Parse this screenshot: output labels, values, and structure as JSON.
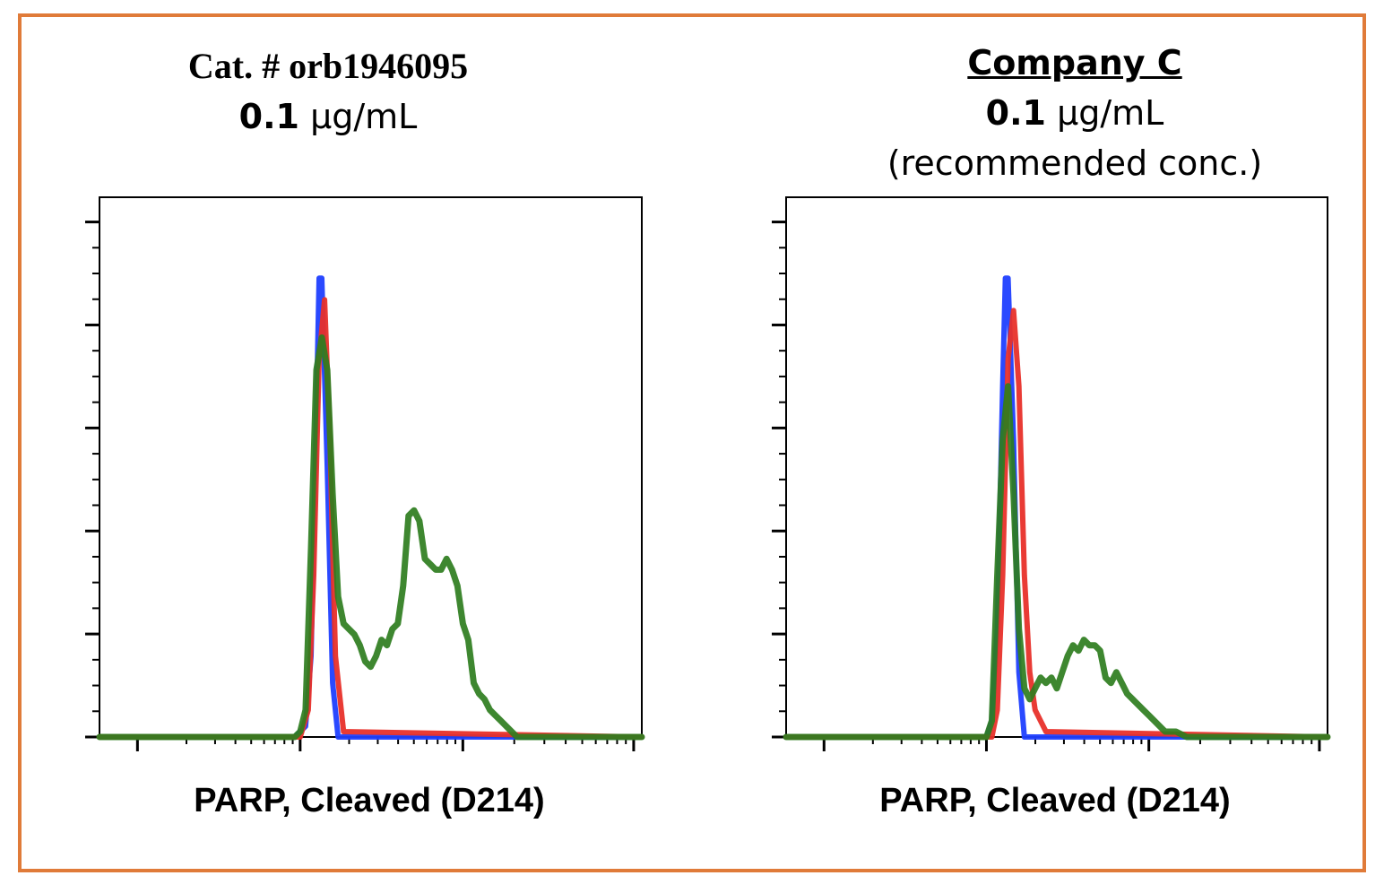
{
  "frame_color": "#e07b39",
  "panels": [
    {
      "title_line1": "Cat. # orb1946095",
      "conc_value": "0.1",
      "conc_unit": "µg/mL",
      "note": ""
    },
    {
      "title_line1": "Company C",
      "conc_value": "0.1",
      "conc_unit": "µg/mL",
      "note": "(recommended conc.)"
    }
  ],
  "chart_data": [
    {
      "type": "line",
      "xlabel": "PARP, Cleaved (D214)",
      "ylabel": "",
      "xlim": [
        0,
        100
      ],
      "ylim": [
        0,
        100
      ],
      "grid": false,
      "series": [
        {
          "color": "#1f3fff",
          "x": [
            0,
            36,
            38,
            39,
            40,
            40.5,
            41,
            42,
            43,
            44,
            100
          ],
          "y": [
            0,
            0,
            2,
            15,
            60,
            85,
            85,
            50,
            10,
            0,
            0
          ]
        },
        {
          "color": "#e8302a",
          "x": [
            0,
            37,
            38.5,
            39.5,
            40.5,
            41.5,
            42.5,
            43.5,
            45,
            100
          ],
          "y": [
            0,
            0,
            5,
            30,
            70,
            81,
            55,
            15,
            1,
            0
          ]
        },
        {
          "color": "#2e7d1e",
          "x": [
            0,
            36,
            37,
            38,
            39,
            40,
            41,
            42,
            43,
            44,
            45,
            46,
            47,
            48,
            49,
            50,
            51,
            52,
            53,
            54,
            55,
            56,
            57,
            58,
            59,
            60,
            61,
            62,
            63,
            64,
            65,
            66,
            67,
            68,
            69,
            70,
            71,
            72,
            73,
            74,
            75,
            76,
            77,
            78,
            79,
            80,
            82,
            84,
            86,
            88,
            90,
            92,
            100
          ],
          "y": [
            0,
            0,
            1,
            5,
            35,
            68,
            74,
            68,
            45,
            26,
            21,
            20,
            19,
            17,
            14,
            13,
            15,
            18,
            17,
            20,
            21,
            28,
            41,
            42,
            40,
            33,
            32,
            31,
            31,
            33,
            31,
            28,
            21,
            18,
            10,
            8,
            7,
            5,
            4,
            3,
            2,
            1,
            0,
            0,
            0,
            0,
            0,
            0,
            0,
            0,
            0,
            0,
            0
          ]
        }
      ]
    },
    {
      "type": "line",
      "xlabel": "PARP, Cleaved (D214)",
      "ylabel": "",
      "xlim": [
        0,
        100
      ],
      "ylim": [
        0,
        100
      ],
      "grid": false,
      "series": [
        {
          "color": "#1f3fff",
          "x": [
            0,
            37,
            38,
            39,
            40,
            40.5,
            41,
            42,
            43,
            44,
            100
          ],
          "y": [
            0,
            0,
            3,
            20,
            65,
            85,
            85,
            55,
            12,
            0,
            0
          ]
        },
        {
          "color": "#e8302a",
          "x": [
            0,
            38,
            39,
            40,
            41,
            42,
            43,
            44,
            45,
            46,
            48,
            100
          ],
          "y": [
            0,
            0,
            5,
            30,
            70,
            79,
            65,
            30,
            12,
            5,
            1,
            0
          ]
        },
        {
          "color": "#2e7d1e",
          "x": [
            0,
            37,
            38,
            39,
            40,
            41,
            42,
            43,
            44,
            45,
            46,
            47,
            48,
            49,
            50,
            51,
            52,
            53,
            54,
            55,
            56,
            57,
            58,
            59,
            60,
            61,
            62,
            63,
            64,
            65,
            66,
            67,
            68,
            69,
            70,
            72,
            74,
            76,
            78,
            80,
            82,
            84,
            86,
            88,
            100
          ],
          "y": [
            0,
            0,
            3,
            30,
            55,
            65,
            45,
            20,
            9,
            7,
            9,
            11,
            10,
            11,
            9,
            12,
            15,
            17,
            16,
            18,
            17,
            17,
            16,
            11,
            10,
            12,
            10,
            8,
            7,
            6,
            5,
            4,
            3,
            2,
            1,
            1,
            0,
            0,
            0,
            0,
            0,
            0,
            0,
            0,
            0
          ]
        }
      ]
    }
  ]
}
